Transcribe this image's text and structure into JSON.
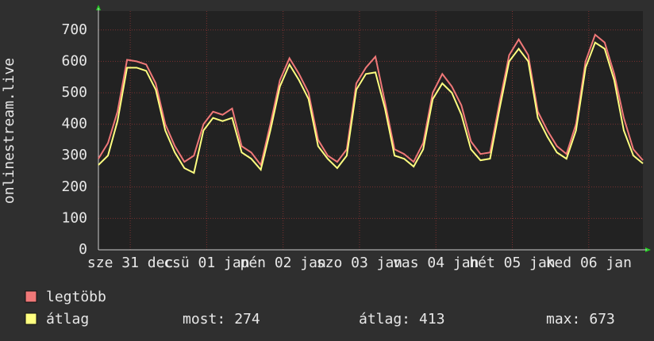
{
  "chart_data": {
    "type": "line",
    "y_label": "onlinestream.live",
    "x": [
      0,
      3,
      6,
      9,
      12,
      15,
      18,
      21,
      24,
      27,
      30,
      33,
      36,
      39,
      42,
      45,
      48,
      51,
      54,
      57,
      60,
      63,
      66,
      69,
      72,
      75,
      78,
      81,
      84,
      87,
      90,
      93,
      96,
      99,
      102,
      105,
      108,
      111,
      114,
      117,
      120,
      123,
      126,
      129,
      132,
      135,
      138,
      141,
      144,
      147,
      150,
      153,
      156,
      159,
      162,
      165,
      168,
      171
    ],
    "xlim": [
      0,
      171
    ],
    "xticks": [
      {
        "value": 10,
        "label": "sze 31 dec"
      },
      {
        "value": 34,
        "label": "csü 01 jan"
      },
      {
        "value": 58,
        "label": "pén 02 jan"
      },
      {
        "value": 82,
        "label": "szo 03 jan"
      },
      {
        "value": 106,
        "label": "vas 04 jan"
      },
      {
        "value": 130,
        "label": "hét 05 jan"
      },
      {
        "value": 154,
        "label": "ked 06 jan"
      }
    ],
    "ylim": [
      0,
      750
    ],
    "yticks": [
      0,
      100,
      200,
      300,
      400,
      500,
      600,
      700
    ],
    "grid": true,
    "series": [
      {
        "name": "legtöbb",
        "color": "#f07878",
        "values": [
          290,
          340,
          440,
          605,
          600,
          590,
          530,
          400,
          330,
          280,
          300,
          400,
          440,
          430,
          450,
          330,
          310,
          270,
          400,
          540,
          610,
          560,
          500,
          350,
          300,
          280,
          320,
          530,
          580,
          615,
          470,
          320,
          305,
          280,
          340,
          500,
          560,
          520,
          460,
          345,
          305,
          310,
          470,
          620,
          670,
          620,
          440,
          380,
          330,
          305,
          400,
          600,
          685,
          660,
          560,
          420,
          320,
          285
        ]
      },
      {
        "name": "átlag",
        "color": "#ffff80",
        "values": [
          270,
          300,
          410,
          580,
          580,
          570,
          510,
          380,
          310,
          260,
          245,
          380,
          420,
          410,
          420,
          310,
          290,
          255,
          380,
          520,
          590,
          540,
          480,
          330,
          290,
          260,
          300,
          510,
          560,
          565,
          450,
          300,
          290,
          265,
          320,
          480,
          530,
          500,
          430,
          320,
          285,
          290,
          450,
          600,
          640,
          600,
          420,
          360,
          310,
          290,
          380,
          580,
          660,
          640,
          540,
          380,
          300,
          275
        ]
      }
    ],
    "stats": [
      {
        "label": "most:",
        "value": 274
      },
      {
        "label": "átlag:",
        "value": 413
      },
      {
        "label": "max:",
        "value": 673
      }
    ]
  }
}
